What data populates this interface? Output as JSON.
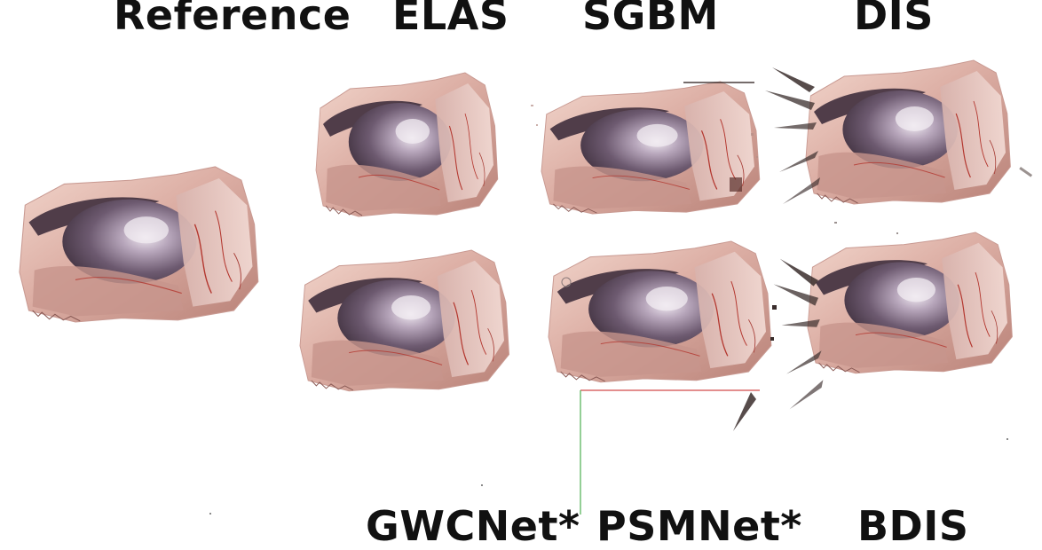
{
  "labels": {
    "reference": "Reference",
    "elas": "ELAS",
    "sgbm": "SGBM",
    "dis": "DIS",
    "gwcnet": "GWCNet*",
    "psmnet": "PSMNet*",
    "bdis": "BDIS"
  },
  "colors": {
    "background": "#ffffff",
    "tissue_base": "#d9a9a0",
    "tissue_light": "#f0d2c8",
    "instrument_dark": "#4a3a48",
    "instrument_mid": "#8e7a8e",
    "instrument_highlight": "#e4dce6",
    "vessel": "#b3362e",
    "axis_x": "#d24a4a",
    "axis_y": "#4caf50"
  }
}
